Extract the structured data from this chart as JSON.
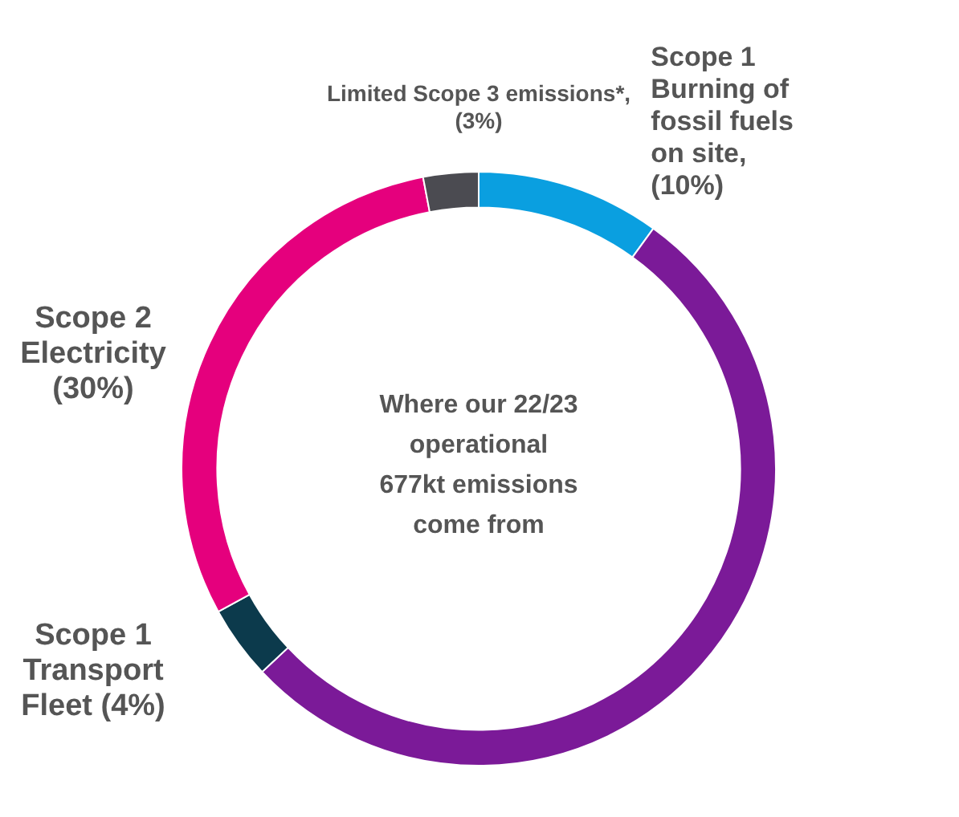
{
  "chart_data": {
    "type": "donut",
    "categories": [
      "Scope 1\nBurning of\nfossil fuels\non site,\n(10%)",
      null,
      "Scope 1\nTransport\nFleet (4%)",
      "Scope 2\nElectricity\n(30%)",
      "Limited Scope 3 emissions*,\n(3%)"
    ],
    "values": [
      10,
      53,
      4,
      30,
      3
    ],
    "colors": [
      "#0a9fe0",
      "#7b1a98",
      "#0c3a4c",
      "#e5007d",
      "#4b4b51"
    ],
    "annotations": [
      "Where our 22/23\noperational\n677kt emissions\ncome from"
    ]
  }
}
